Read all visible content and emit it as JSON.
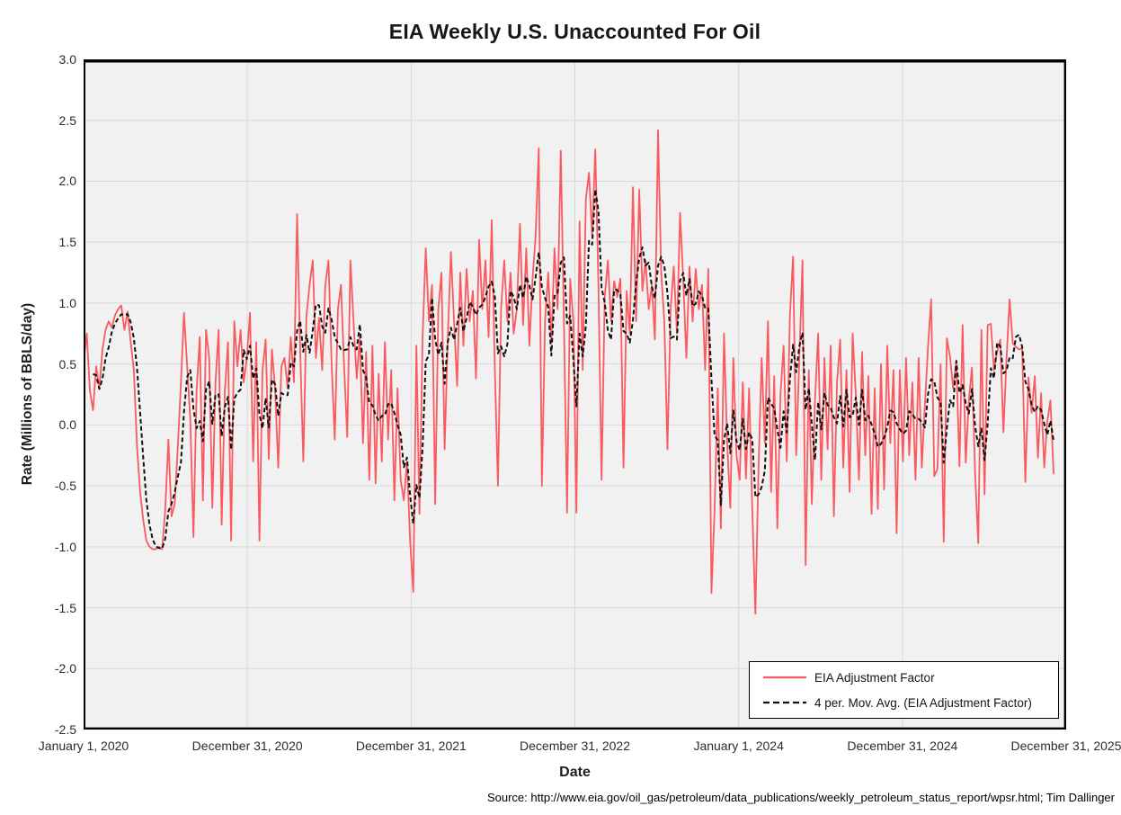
{
  "chart_data": {
    "type": "line",
    "title": "EIA Weekly U.S. Unaccounted For Oil",
    "xlabel": "Date",
    "ylabel": "Rate (Millions of BBLS/day)",
    "ylim": [
      -2.5,
      3.0
    ],
    "grid": true,
    "legend_position": "inside-bottom-right",
    "plot_bg_color": "#F1F1F1",
    "gridline_color": "#D8D8D8",
    "x_tick_labels": [
      "January 1, 2020",
      "December 31, 2020",
      "December 31, 2021",
      "December 31, 2022",
      "January 1, 2024",
      "December 31, 2024",
      "December 31, 2025"
    ],
    "y_tick_labels": [
      "3.0",
      "2.5",
      "2.0",
      "1.5",
      "1.0",
      "0.5",
      "0.0",
      "-0.5",
      "-1.0",
      "-1.5",
      "-2.0",
      "-2.5"
    ],
    "x_domain_weeks": 313,
    "series": [
      {
        "name": "EIA Adjustment Factor",
        "color": "#FA5A5F",
        "style": "solid",
        "interval": "weekly",
        "values": [
          0.52,
          0.75,
          0.28,
          0.12,
          0.48,
          0.3,
          0.62,
          0.78,
          0.85,
          0.8,
          0.9,
          0.95,
          0.98,
          0.78,
          0.93,
          0.68,
          0.45,
          -0.18,
          -0.55,
          -0.78,
          -0.95,
          -1,
          -1.02,
          -1.02,
          -1,
          -1.02,
          -0.7,
          -0.12,
          -0.75,
          -0.65,
          -0.18,
          0.35,
          0.92,
          0.48,
          0.05,
          -0.92,
          0.28,
          0.72,
          -0.62,
          0.78,
          0.55,
          -0.68,
          0.35,
          0.78,
          -0.82,
          0.28,
          0.68,
          -0.95,
          0.85,
          0.48,
          0.78,
          0.35,
          0.55,
          0.92,
          -0.3,
          0.68,
          -0.95,
          0.45,
          0.7,
          -0.28,
          0.62,
          0.3,
          -0.35,
          0.48,
          0.55,
          0.3,
          0.72,
          0.35,
          1.73,
          0.62,
          -0.3,
          0.9,
          1.15,
          1.35,
          0.55,
          0.88,
          0.45,
          1.15,
          1.35,
          0.5,
          -0.12,
          0.95,
          1.15,
          0.48,
          -0.1,
          1.35,
          0.85,
          0.38,
          0.72,
          -0.15,
          0.6,
          -0.45,
          0.65,
          -0.48,
          0.42,
          -0.3,
          0.68,
          -0.12,
          0.45,
          -0.62,
          0.3,
          -0.45,
          -0.62,
          -0.3,
          -0.95,
          -1.37,
          0.65,
          -0.73,
          0.72,
          1.45,
          0.85,
          1.15,
          -0.65,
          0.95,
          1.25,
          -0.2,
          0.72,
          1.42,
          0.85,
          0.32,
          1.25,
          0.65,
          1.28,
          0.85,
          1.1,
          0.38,
          1.52,
          0.95,
          1.35,
          0.72,
          1.68,
          0.45,
          -0.5,
          0.95,
          1.35,
          0.85,
          1.25,
          0.75,
          0.95,
          1.65,
          0.82,
          1.45,
          0.65,
          1.2,
          1.55,
          2.27,
          -0.5,
          0.85,
          1.25,
          0.68,
          1.45,
          0.95,
          2.25,
          0.85,
          -0.72,
          1.2,
          0.85,
          -0.72,
          1.67,
          0.45,
          1.85,
          2.07,
          1.55,
          2.26,
          1.15,
          -0.45,
          1.05,
          1.35,
          0.85,
          1.18,
          1.05,
          1.2,
          -0.35,
          1.1,
          0.75,
          1.95,
          0.85,
          1.93,
          1.1,
          1.35,
          0.95,
          1.15,
          0.7,
          2.42,
          1.25,
          0.85,
          -0.2,
          0.95,
          1.3,
          0.75,
          1.74,
          1.2,
          0.55,
          1.3,
          0.85,
          1.28,
          0.95,
          1.15,
          0.45,
          1.28,
          -1.38,
          -0.7,
          0.3,
          -0.85,
          0.75,
          -0.15,
          -0.68,
          0.55,
          -0.25,
          -0.45,
          0.35,
          -0.44,
          0.3,
          -0.68,
          -1.55,
          -0.35,
          0.55,
          -0.15,
          0.85,
          -0.55,
          0.4,
          -0.85,
          0.25,
          0.65,
          -0.3,
          0.9,
          1.38,
          -0.25,
          0.55,
          1.35,
          -1.15,
          0.45,
          -0.65,
          0.2,
          0.75,
          -0.45,
          0.55,
          -0.2,
          0.65,
          -0.75,
          0.35,
          0.7,
          -0.35,
          0.45,
          -0.55,
          0.75,
          0.25,
          -0.45,
          0.6,
          -0.25,
          0.4,
          -0.73,
          0.3,
          -0.69,
          0.5,
          -0.53,
          0.65,
          -0.15,
          0.45,
          -0.89,
          0.45,
          -0.3,
          0.55,
          -0.25,
          0.35,
          -0.45,
          0.55,
          -0.35,
          0.17,
          0.65,
          1.03,
          -0.42,
          -0.36,
          0.5,
          -0.96,
          0.71,
          0.56,
          0.3,
          0.53,
          -0.34,
          0.82,
          -0.31,
          0.2,
          0.47,
          -0.4,
          -0.97,
          0.78,
          -0.57,
          0.82,
          0.83,
          0.45,
          0.6,
          0.7,
          -0.06,
          0.55,
          1.03,
          0.67,
          0.64,
          0.62,
          0.63,
          -0.47,
          0.39,
          0.1,
          0.4,
          -0.27,
          0.26,
          -0.35,
          0.03,
          0.2,
          -0.4
        ]
      },
      {
        "name": "4 per. Mov. Avg. (EIA Adjustment Factor)",
        "color": "#111111",
        "style": "dashed",
        "derived": "trailing_moving_average",
        "window": 4,
        "of": "EIA Adjustment Factor"
      }
    ]
  },
  "source_note": "Source: http://www.eia.gov/oil_gas/petroleum/data_publications/weekly_petroleum_status_report/wpsr.html; Tim Dallinger"
}
